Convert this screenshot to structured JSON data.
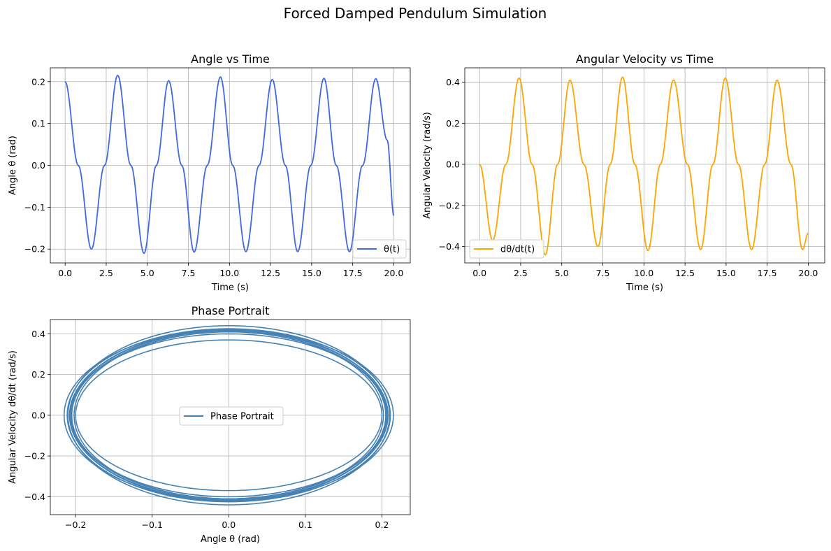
{
  "figure": {
    "title": "Forced Damped Pendulum Simulation",
    "width": 1189,
    "height": 788
  },
  "chart_data": [
    {
      "type": "line",
      "title": "Angle vs Time",
      "xlabel": "Time (s)",
      "ylabel": "Angle θ (rad)",
      "xlim": [
        -0.9,
        21.0
      ],
      "ylim": [
        -0.233,
        0.233
      ],
      "xticks": [
        0.0,
        2.5,
        5.0,
        7.5,
        10.0,
        12.5,
        15.0,
        17.5,
        20.0
      ],
      "xtick_labels": [
        "0.0",
        "2.5",
        "5.0",
        "7.5",
        "10.0",
        "12.5",
        "15.0",
        "17.5",
        "20.0"
      ],
      "yticks": [
        0.2,
        0.1,
        0.0,
        -0.1,
        -0.2
      ],
      "ytick_labels": [
        "0.2",
        "0.1",
        "0.0",
        "−0.1",
        "−0.2"
      ],
      "grid": true,
      "legend_position": "lower-right",
      "series": [
        {
          "name": "θ(t)",
          "color": "#4169e1",
          "x": [
            0.0,
            0.8,
            1.6,
            2.4,
            3.2,
            4.0,
            4.8,
            5.55,
            6.3,
            7.1,
            7.85,
            8.65,
            9.45,
            10.2,
            11.0,
            11.8,
            12.6,
            13.4,
            14.15,
            14.95,
            15.75,
            16.5,
            17.3,
            18.1,
            18.9,
            19.6,
            20.0
          ],
          "y": [
            0.2,
            0.0,
            -0.2,
            0.0,
            0.215,
            0.0,
            -0.21,
            0.0,
            0.202,
            0.0,
            -0.207,
            0.0,
            0.211,
            0.0,
            -0.206,
            0.0,
            0.205,
            0.0,
            -0.206,
            0.0,
            0.208,
            0.0,
            -0.206,
            0.0,
            0.207,
            0.06,
            -0.12
          ]
        }
      ]
    },
    {
      "type": "line",
      "title": "Angular Velocity vs Time",
      "xlabel": "Time (s)",
      "ylabel": "Angular Velocity (rad/s)",
      "xlim": [
        -0.9,
        21.0
      ],
      "ylim": [
        -0.48,
        0.47
      ],
      "xticks": [
        0.0,
        2.5,
        5.0,
        7.5,
        10.0,
        12.5,
        15.0,
        17.5,
        20.0
      ],
      "xtick_labels": [
        "0.0",
        "2.5",
        "5.0",
        "7.5",
        "10.0",
        "12.5",
        "15.0",
        "17.5",
        "20.0"
      ],
      "yticks": [
        0.4,
        0.2,
        0.0,
        -0.2,
        -0.4
      ],
      "ytick_labels": [
        "0.4",
        "0.2",
        "0.0",
        "−0.2",
        "−0.4"
      ],
      "grid": true,
      "legend_position": "lower-left",
      "series": [
        {
          "name": "dθ/dt(t)",
          "color": "#ffa500",
          "x": [
            0.0,
            0.8,
            1.6,
            2.4,
            3.2,
            4.0,
            4.75,
            5.5,
            6.35,
            7.2,
            7.95,
            8.7,
            9.45,
            10.25,
            11.0,
            11.8,
            12.65,
            13.45,
            14.2,
            14.95,
            15.75,
            16.55,
            17.35,
            18.1,
            18.95,
            19.65,
            20.0
          ],
          "y": [
            0.0,
            -0.37,
            0.0,
            0.42,
            0.0,
            -0.44,
            0.0,
            0.41,
            0.0,
            -0.4,
            0.0,
            0.425,
            0.0,
            -0.42,
            0.0,
            0.41,
            0.0,
            -0.415,
            0.0,
            0.42,
            0.0,
            -0.415,
            0.0,
            0.41,
            0.0,
            -0.415,
            -0.335
          ]
        }
      ]
    },
    {
      "type": "line",
      "title": "Phase Portrait",
      "xlabel": "Angle θ (rad)",
      "ylabel": "Angular Velocity dθ/dt (rad/s)",
      "xlim": [
        -0.233,
        0.237
      ],
      "ylim": [
        -0.488,
        0.47
      ],
      "xticks": [
        -0.2,
        -0.1,
        0.0,
        0.1,
        0.2
      ],
      "xtick_labels": [
        "−0.2",
        "−0.1",
        "0.0",
        "0.1",
        "0.2"
      ],
      "yticks": [
        0.4,
        0.2,
        0.0,
        -0.2,
        -0.4
      ],
      "ytick_labels": [
        "0.4",
        "0.2",
        "0.0",
        "−0.2",
        "−0.4"
      ],
      "grid": true,
      "legend_position": "center",
      "series": [
        {
          "name": "Phase Portrait",
          "color": "#4682b4",
          "orbits": [
            {
              "theta_amp": 0.2,
              "omega_amp": 0.37
            },
            {
              "theta_amp": 0.215,
              "omega_amp": 0.42
            },
            {
              "theta_amp": 0.21,
              "omega_amp": 0.44
            },
            {
              "theta_amp": 0.202,
              "omega_amp": 0.41
            },
            {
              "theta_amp": 0.207,
              "omega_amp": 0.4
            },
            {
              "theta_amp": 0.211,
              "omega_amp": 0.425
            },
            {
              "theta_amp": 0.206,
              "omega_amp": 0.42
            },
            {
              "theta_amp": 0.205,
              "omega_amp": 0.41
            },
            {
              "theta_amp": 0.208,
              "omega_amp": 0.415
            },
            {
              "theta_amp": 0.207,
              "omega_amp": 0.42
            }
          ]
        }
      ]
    }
  ]
}
